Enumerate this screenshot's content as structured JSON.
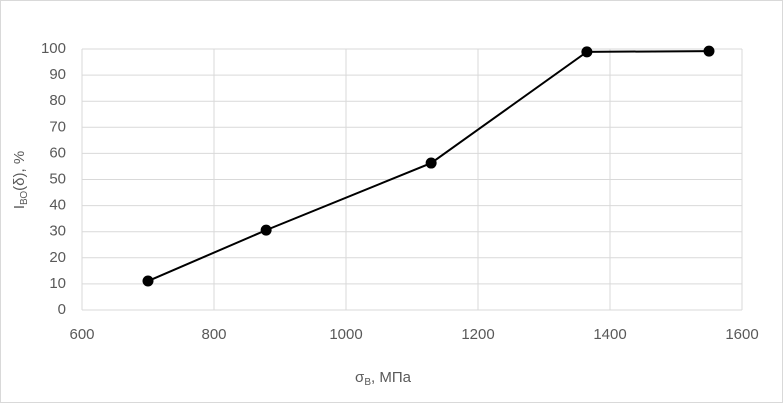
{
  "chart_data": {
    "type": "line",
    "x_label": {
      "main": "σ",
      "sub": "В",
      "rest": ", МПа"
    },
    "y_label": {
      "main": "I",
      "sub": "ВО",
      "rest": "(δ), %"
    },
    "x": [
      700,
      879,
      1129,
      1365,
      1550
    ],
    "series": [
      {
        "color": "#000000",
        "values": [
          11.1,
          30.6,
          56.3,
          98.9,
          99.2
        ]
      }
    ],
    "xlim": [
      600,
      1600
    ],
    "xticks": [
      600,
      800,
      1000,
      1200,
      1400,
      1600
    ],
    "ylim": [
      0,
      100
    ],
    "yticks": [
      0,
      10,
      20,
      30,
      40,
      50,
      60,
      70,
      80,
      90,
      100
    ],
    "grid": true
  }
}
